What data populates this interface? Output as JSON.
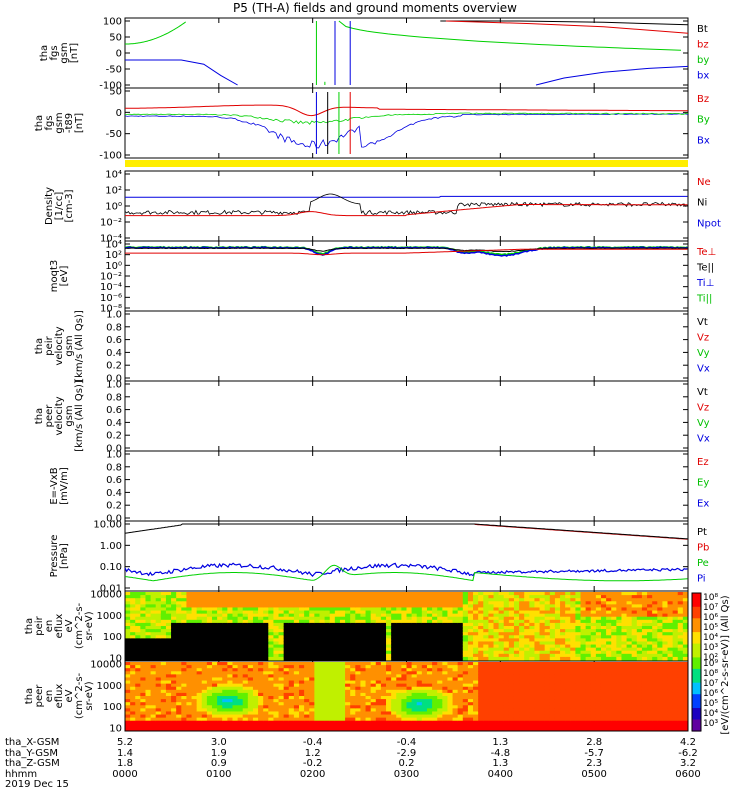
{
  "title": "P5 (TH-A) fields and ground moments overview",
  "colors": {
    "black": "#000000",
    "red": "#e00000",
    "green": "#00d000",
    "blue": "#0000e0",
    "yellow": "#ffee00"
  },
  "panels": [
    {
      "id": "fgs",
      "ylabel": [
        "tha",
        "fgs",
        "gsm",
        "[nT]"
      ],
      "ticks": [
        "100",
        "50",
        "0",
        "-50",
        "-100"
      ],
      "legend": [
        {
          "t": "Bt",
          "c": "#000000"
        },
        {
          "t": "bz",
          "c": "#e00000"
        },
        {
          "t": "by",
          "c": "#00c000"
        },
        {
          "t": "bx",
          "c": "#0000e0"
        }
      ]
    },
    {
      "id": "fgs-dt",
      "ylabel": [
        "tha",
        "fgs",
        "gsm",
        "-t89",
        "[nT]"
      ],
      "ticks": [
        "50",
        "0",
        "-50",
        "-100"
      ],
      "legend": [
        {
          "t": "Bz",
          "c": "#e00000"
        },
        {
          "t": "By",
          "c": "#00c000"
        },
        {
          "t": "Bx",
          "c": "#0000e0"
        }
      ]
    },
    {
      "id": "density",
      "ylabel": [
        "Density",
        "[1/cc]",
        "[cm-3]"
      ],
      "ticks": [
        "10⁴",
        "10²",
        "10⁰",
        "10⁻²",
        "10⁻⁴"
      ],
      "legend": [
        {
          "t": "Ne",
          "c": "#e00000"
        },
        {
          "t": "Ni",
          "c": "#000000"
        },
        {
          "t": "Npot",
          "c": "#0000e0"
        }
      ]
    },
    {
      "id": "temp",
      "ylabel": [
        "moqt3",
        "[eV]"
      ],
      "ticks": [
        "10⁴",
        "10²",
        "10⁰",
        "10⁻²",
        "10⁻⁴",
        "10⁻⁶",
        "10⁻⁸"
      ],
      "legend": [
        {
          "t": "Te⊥",
          "c": "#e00000"
        },
        {
          "t": "Te||",
          "c": "#000000"
        },
        {
          "t": "Ti⊥",
          "c": "#0000e0"
        },
        {
          "t": "Ti||",
          "c": "#00c000"
        }
      ]
    },
    {
      "id": "peir-vel",
      "ylabel": [
        "tha",
        "peir",
        "velocity",
        "gsm",
        "[km/s (All Qs)]"
      ],
      "ticks": [
        "1.0",
        "0.8",
        "0.6",
        "0.4",
        "0.2",
        "0.0"
      ],
      "legend": [
        {
          "t": "Vt",
          "c": "#000000"
        },
        {
          "t": "Vz",
          "c": "#e00000"
        },
        {
          "t": "Vy",
          "c": "#00c000"
        },
        {
          "t": "Vx",
          "c": "#0000e0"
        }
      ]
    },
    {
      "id": "peer-vel",
      "ylabel": [
        "tha",
        "peer",
        "velocity",
        "gsm",
        "[km/s (All Qs)]"
      ],
      "ticks": [
        "1.0",
        "0.8",
        "0.6",
        "0.4",
        "0.2",
        "0.0"
      ],
      "legend": [
        {
          "t": "Vt",
          "c": "#000000"
        },
        {
          "t": "Vz",
          "c": "#e00000"
        },
        {
          "t": "Vy",
          "c": "#00c000"
        },
        {
          "t": "Vx",
          "c": "#0000e0"
        }
      ]
    },
    {
      "id": "efield",
      "ylabel": [
        "E=-VxB",
        "[mV/m]"
      ],
      "ticks": [
        "1.0",
        "0.8",
        "0.6",
        "0.4",
        "0.2",
        "0.0"
      ],
      "legend": [
        {
          "t": "Ez",
          "c": "#e00000"
        },
        {
          "t": "Ey",
          "c": "#00c000"
        },
        {
          "t": "Ex",
          "c": "#0000e0"
        }
      ]
    },
    {
      "id": "pressure",
      "ylabel": [
        "Pressure",
        "[nPa]"
      ],
      "ticks": [
        "10.00",
        "1.00",
        "0.10",
        "0.01"
      ],
      "legend": [
        {
          "t": "Pt",
          "c": "#000000"
        },
        {
          "t": "Pb",
          "c": "#e00000"
        },
        {
          "t": "Pe",
          "c": "#00c000"
        },
        {
          "t": "Pi",
          "c": "#0000e0"
        }
      ]
    },
    {
      "id": "peir-spec",
      "ylabel": [
        "tha",
        "peir",
        "en",
        "eflux",
        "eV",
        "(cm^2-s-",
        "sr-eV)"
      ],
      "ticks": [
        "10000",
        "1000",
        "100",
        "10"
      ],
      "legend": []
    },
    {
      "id": "peer-spec",
      "ylabel": [
        "tha",
        "peer",
        "en",
        "eflux",
        "eV",
        "(cm^2-s-",
        "sr-eV)"
      ],
      "ticks": [
        "10000",
        "1000",
        "100",
        "10"
      ],
      "legend": []
    }
  ],
  "colorbar": {
    "labels_top": [
      "10⁸",
      "10⁷",
      "10⁶",
      "10⁵",
      "10⁴",
      "10³",
      "10²"
    ],
    "labels_bottom": [
      "10⁹",
      "10⁸",
      "10⁷",
      "10⁶",
      "10⁵",
      "10⁴",
      "10³"
    ],
    "title": "[eV/(cm^2-s-sr-eV)] (All Qs)"
  },
  "x_axis": {
    "rows": [
      "tha_X-GSM",
      "tha_Y-GSM",
      "tha_Z-GSM",
      "hhmm",
      "2019 Dec 15"
    ],
    "columns": [
      {
        "x": "5.2",
        "y": "1.4",
        "z": "1.8",
        "t": "0000"
      },
      {
        "x": "3.0",
        "y": "1.9",
        "z": "0.9",
        "t": "0100"
      },
      {
        "x": "-0.4",
        "y": "1.2",
        "z": "-0.2",
        "t": "0200"
      },
      {
        "x": "-0.4",
        "y": "-2.9",
        "z": "0.2",
        "t": "0300"
      },
      {
        "x": "1.3",
        "y": "-4.8",
        "z": "1.3",
        "t": "0400"
      },
      {
        "x": "2.8",
        "y": "-5.7",
        "z": "2.3",
        "t": "0500"
      },
      {
        "x": "4.2",
        "y": "-6.2",
        "z": "3.2",
        "t": "0600"
      }
    ]
  },
  "chart_data": {
    "type": "line",
    "title": "P5 (TH-A) fields and ground moments overview",
    "x": [
      "0000",
      "0100",
      "0200",
      "0300",
      "0400",
      "0500",
      "0600"
    ],
    "xlabel": "hhmm",
    "series": [
      {
        "name": "Bt",
        "values": [
          100,
          100,
          100,
          100,
          100,
          100,
          85
        ]
      },
      {
        "name": "bz",
        "values": [
          100,
          100,
          100,
          100,
          100,
          80,
          60
        ]
      },
      {
        "name": "by",
        "values": [
          30,
          100,
          100,
          100,
          60,
          20,
          8
        ]
      },
      {
        "name": "bx",
        "values": [
          -20,
          -100,
          -100,
          -100,
          -90,
          -60,
          -40
        ]
      }
    ],
    "ylim": [
      -100,
      100
    ]
  }
}
